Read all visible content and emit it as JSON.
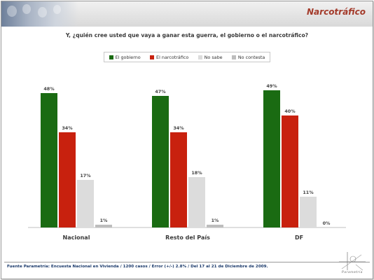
{
  "header": {
    "section_title": "Narcotráfico"
  },
  "question": "Y, ¿quién cree usted que vaya a ganar esta guerra, el gobierno o el narcotráfico?",
  "chart_data": {
    "type": "bar",
    "categories": [
      "Nacional",
      "Resto del País",
      "DF"
    ],
    "series": [
      {
        "name": "El gobierno",
        "color": "#1a6b12",
        "values": [
          48,
          47,
          49
        ],
        "labels": [
          "48%",
          "47%",
          "49%"
        ]
      },
      {
        "name": "El narcotráfico",
        "color": "#c8210e",
        "values": [
          34,
          34,
          40
        ],
        "labels": [
          "34%",
          "34%",
          "40%"
        ]
      },
      {
        "name": "No sabe",
        "color": "#dcdcdc",
        "values": [
          17,
          18,
          11
        ],
        "labels": [
          "17%",
          "18%",
          "11%"
        ]
      },
      {
        "name": "No contesta",
        "color": "#bdbdbd",
        "values": [
          1,
          1,
          0
        ],
        "labels": [
          "1%",
          "1%",
          "0%"
        ]
      }
    ],
    "ylim": [
      0,
      60
    ],
    "grid": false,
    "legend_position": "top"
  },
  "footer": {
    "source": "Fuente Parametría: Encuesta Nacional en Vivienda / 1200 casos / Error (+/-) 2.8% / Del 17 al 21 de Diciembre de 2009."
  },
  "logo": {
    "icon": "parametria-logo",
    "wordmark": "Parametría"
  }
}
